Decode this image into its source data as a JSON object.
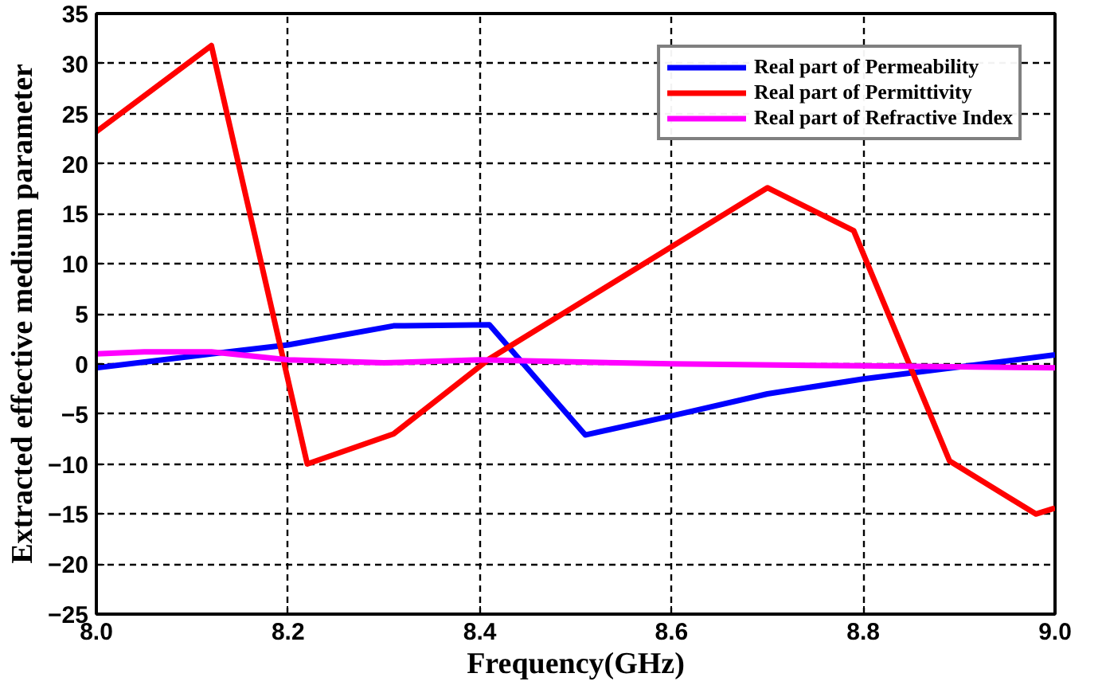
{
  "chart_data": {
    "type": "line",
    "xlabel": "Frequency(GHz)",
    "ylabel": "Extracted effective medium parameter",
    "xlim": [
      8.0,
      9.0
    ],
    "xticks": [
      {
        "value": 8.0,
        "label": "8.0"
      },
      8.2,
      8.4,
      8.6,
      8.8,
      {
        "value": 9.0,
        "label": "9.0"
      }
    ],
    "ylim": [
      -25,
      35
    ],
    "yticks": [
      -25,
      -20,
      -15,
      -10,
      -5,
      0,
      5,
      10,
      15,
      20,
      25,
      30,
      35
    ],
    "grid": true,
    "legend": "top right",
    "line_style": "solid",
    "marker": "none",
    "series": [
      {
        "name": "Real part of Permeability",
        "color": "#0000ff",
        "x": [
          8.0,
          8.12,
          8.2,
          8.31,
          8.41,
          8.51,
          8.6,
          8.7,
          8.8,
          9.0
        ],
        "values": [
          -0.4,
          1.0,
          1.9,
          3.8,
          3.9,
          -7.1,
          -5.2,
          -3.0,
          -1.5,
          0.9
        ]
      },
      {
        "name": "Real part of Permittivity",
        "color": "#ff0000",
        "x": [
          8.0,
          8.12,
          8.22,
          8.31,
          8.41,
          8.7,
          8.79,
          8.89,
          8.98,
          9.0
        ],
        "values": [
          23.2,
          31.8,
          -10.0,
          -7.0,
          0.5,
          17.6,
          13.3,
          -9.7,
          -15.0,
          -14.4
        ]
      },
      {
        "name": "Real part of Refractive Index",
        "color": "#ff00ff",
        "x": [
          8.0,
          8.05,
          8.12,
          8.2,
          8.3,
          8.4,
          8.6,
          8.8,
          9.0
        ],
        "values": [
          1.0,
          1.2,
          1.2,
          0.4,
          0.1,
          0.4,
          0.0,
          -0.2,
          -0.4
        ]
      }
    ]
  }
}
